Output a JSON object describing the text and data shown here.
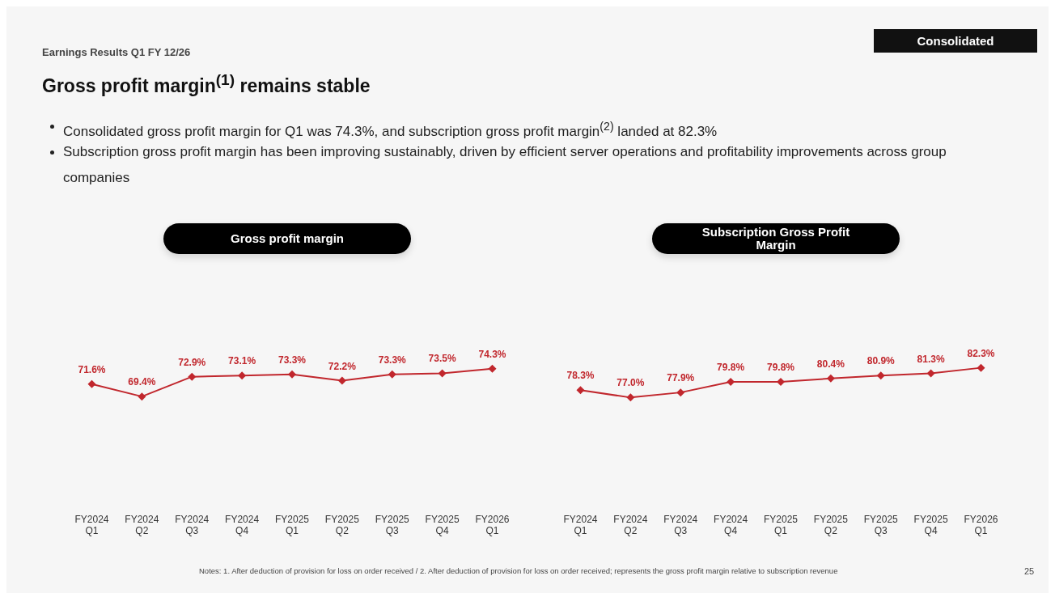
{
  "chart_data": [
    {
      "type": "other",
      "title": "Gross profit margin$^{(1)}$ remains stable",
      "subtitle": "Earnings Results Q1 FY 12/26",
      "annotations": [
        "Consolidated",
        "Consolidated gross profit margin for Q1 was 74.3%, and subscription gross profit margin$^{(2)}$ landed at 82.3%",
        "Subscription gross profit margin has been improving sustainably, driven by efficient server operations and profitability improvements across group companies",
        "Notes: 1. After deduction of provision for loss on order received / 2. After deduction of provision for loss on order received; represents the gross profit margin relative to subscription revenue",
        "25"
      ]
    },
    {
      "type": "line",
      "title": "Gross profit margin",
      "categories": [
        "FY2024 Q1",
        "FY2024 Q2",
        "FY2024 Q3",
        "FY2024 Q4",
        "FY2025 Q1",
        "FY2025 Q2",
        "FY2025 Q3",
        "FY2025 Q4",
        "FY2026 Q1"
      ],
      "series": [
        {
          "color": "#c1272d",
          "values": [
            71.6,
            69.4,
            72.9,
            73.1,
            73.3,
            72.2,
            73.3,
            73.5,
            74.3
          ],
          "value_labels": [
            "71.6%",
            "69.4%",
            "72.9%",
            "73.1%",
            "73.3%",
            "72.2%",
            "73.3%",
            "73.5%",
            "74.3%"
          ]
        }
      ],
      "tick_labels": "x",
      "marker": "diamond",
      "line_style": "solid"
    },
    {
      "type": "line",
      "title": "Subscription Gross Profit Margin",
      "categories": [
        "FY2024 Q1",
        "FY2024 Q2",
        "FY2024 Q3",
        "FY2024 Q4",
        "FY2025 Q1",
        "FY2025 Q2",
        "FY2025 Q3",
        "FY2025 Q4",
        "FY2026 Q1"
      ],
      "series": [
        {
          "color": "#c1272d",
          "values": [
            78.3,
            77.0,
            77.9,
            79.8,
            79.8,
            80.4,
            80.9,
            81.3,
            82.3
          ],
          "value_labels": [
            "78.3%",
            "77.0%",
            "77.9%",
            "79.8%",
            "79.8%",
            "80.4%",
            "80.9%",
            "81.3%",
            "82.3%"
          ]
        }
      ],
      "tick_labels": "x",
      "marker": "diamond",
      "line_style": "solid"
    }
  ]
}
